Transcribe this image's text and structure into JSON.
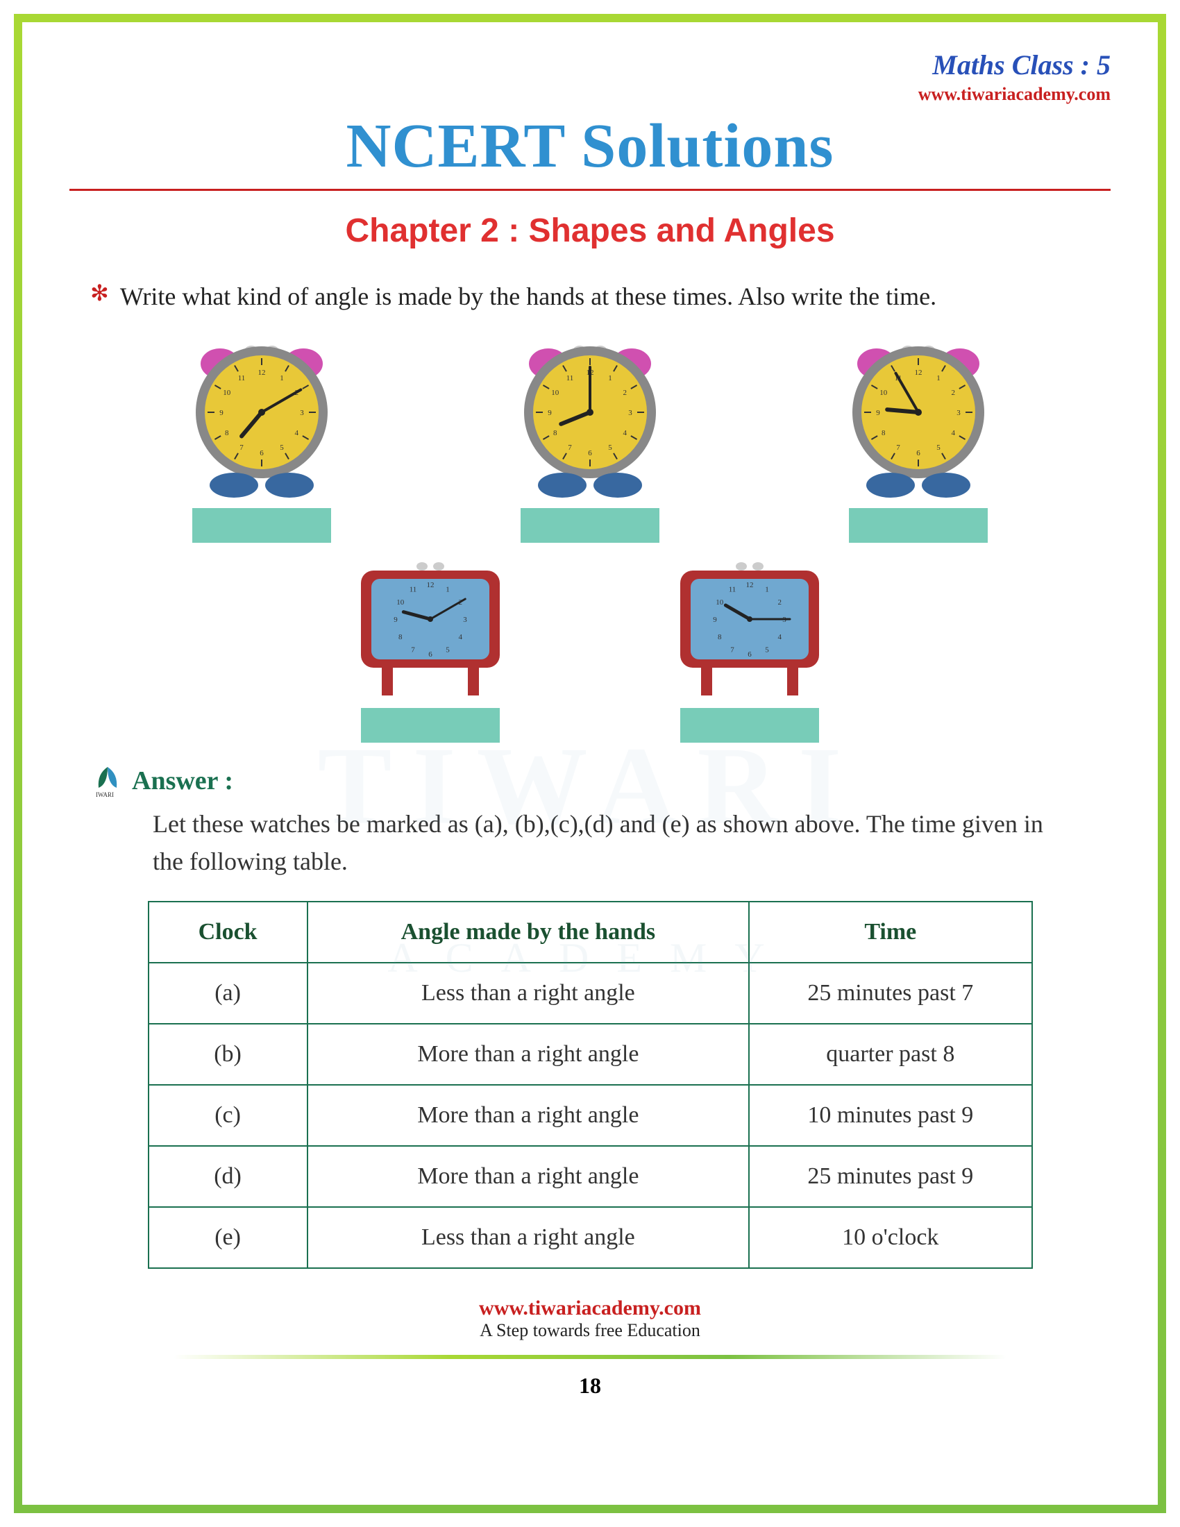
{
  "header": {
    "class_label": "Maths Class : 5",
    "website": "www.tiwariacademy.com",
    "main_title": "NCERT Solutions",
    "chapter_title": "Chapter 2 : Shapes and Angles"
  },
  "question": {
    "text": "Write what kind of angle is made by the hands at these times. Also write the time."
  },
  "clocks": {
    "row1": [
      {
        "face_color": "#e8c838",
        "body_color": "#888",
        "ear_color": "#d050b0",
        "foot_color": "#3868a0",
        "hour_angle": 220,
        "min_angle": 60
      },
      {
        "face_color": "#e8c838",
        "body_color": "#888",
        "ear_color": "#d050b0",
        "foot_color": "#3868a0",
        "hour_angle": 248,
        "min_angle": 0
      },
      {
        "face_color": "#e8c838",
        "body_color": "#888",
        "ear_color": "#d050b0",
        "foot_color": "#3868a0",
        "hour_angle": 275,
        "min_angle": 330
      }
    ],
    "row2": [
      {
        "face_color": "#70a8d0",
        "body_color": "#b03030",
        "hour_angle": 285,
        "min_angle": 60
      },
      {
        "face_color": "#70a8d0",
        "body_color": "#b03030",
        "hour_angle": 300,
        "min_angle": 90
      }
    ]
  },
  "answer": {
    "label": "Answer :",
    "intro": "Let these watches be marked as (a), (b),(c),(d) and (e) as shown above. The time given in the following table."
  },
  "table": {
    "columns": [
      "Clock",
      "Angle made by the hands",
      "Time"
    ],
    "rows": [
      [
        "(a)",
        "Less than a right angle",
        "25 minutes past 7"
      ],
      [
        "(b)",
        "More  than a right angle",
        "quarter past 8"
      ],
      [
        "(c)",
        "More  than a right angle",
        "10 minutes past 9"
      ],
      [
        "(d)",
        "More  than a right angle",
        "25 minutes past 9"
      ],
      [
        "(e)",
        "Less than a right angle",
        "10 o'clock"
      ]
    ],
    "col_widths": [
      "18%",
      "50%",
      "32%"
    ]
  },
  "footer": {
    "link": "www.tiwariacademy.com",
    "tagline": "A Step towards free Education",
    "page_number": "18"
  },
  "watermark": {
    "line1": "TIWARI",
    "line2": "ACADEMY"
  },
  "colors": {
    "border_green": "#7cc142",
    "title_blue": "#3090d0",
    "chapter_red": "#e03030",
    "link_red": "#c82020",
    "answer_green": "#1a7050",
    "box_teal": "#78ccb8"
  }
}
